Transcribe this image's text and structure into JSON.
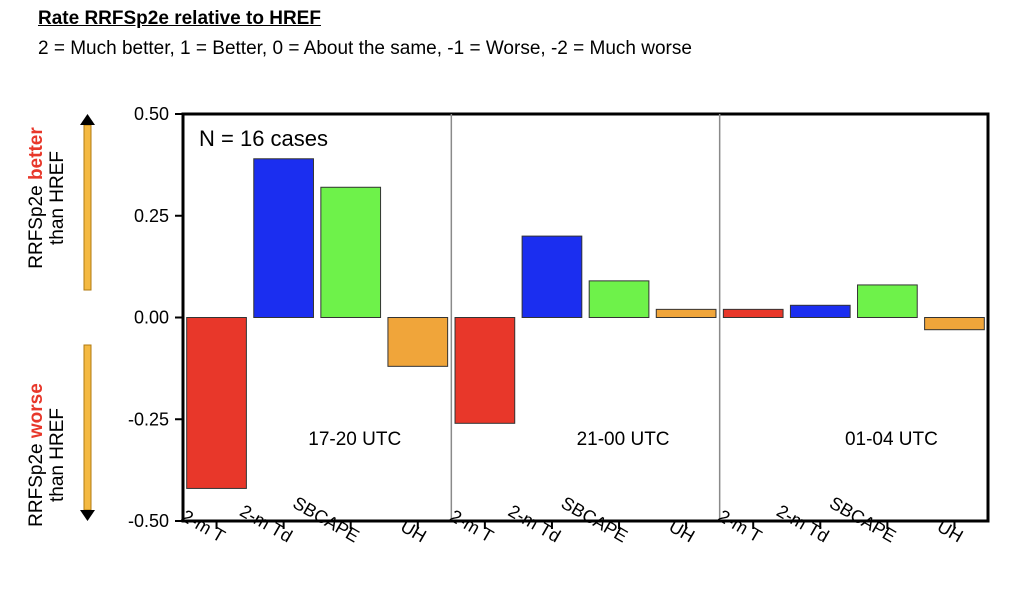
{
  "header": {
    "title": "Rate RRFSp2e relative to HREF",
    "subtitle": "2 = Much better, 1 = Better, 0 = About the same, -1 = Worse, -2 = Much worse"
  },
  "side_labels": {
    "better_line1_prefix": "RRFSp2e ",
    "better_line1_emph": "better",
    "better_line2": "than HREF",
    "worse_line1_prefix": "RRFSp2e ",
    "worse_line1_emph": "worse",
    "worse_line2": "than HREF"
  },
  "colors": {
    "2-m T": "#e8372a",
    "2-m Td": "#1b2ef0",
    "SBCAPE": "#6ef24a",
    "UH": "#f0a53a",
    "emphasis": "#e8372a",
    "arrow": "#f4b942"
  },
  "chart_data": {
    "type": "bar",
    "annotation": "N = 16 cases",
    "ylim": [
      -0.5,
      0.5
    ],
    "yticks": [
      "0.50",
      "0.25",
      "0.00",
      "-0.25",
      "-0.50"
    ],
    "ytick_values": [
      0.5,
      0.25,
      0.0,
      -0.25,
      -0.5
    ],
    "categories": [
      "2-m T",
      "2-m Td",
      "SBCAPE",
      "UH"
    ],
    "panels": [
      {
        "label": "17-20 UTC",
        "values": [
          -0.42,
          0.39,
          0.32,
          -0.12
        ]
      },
      {
        "label": "21-00 UTC",
        "values": [
          -0.26,
          0.2,
          0.09,
          0.02
        ]
      },
      {
        "label": "01-04 UTC",
        "values": [
          0.02,
          0.03,
          0.08,
          -0.03
        ]
      }
    ]
  }
}
